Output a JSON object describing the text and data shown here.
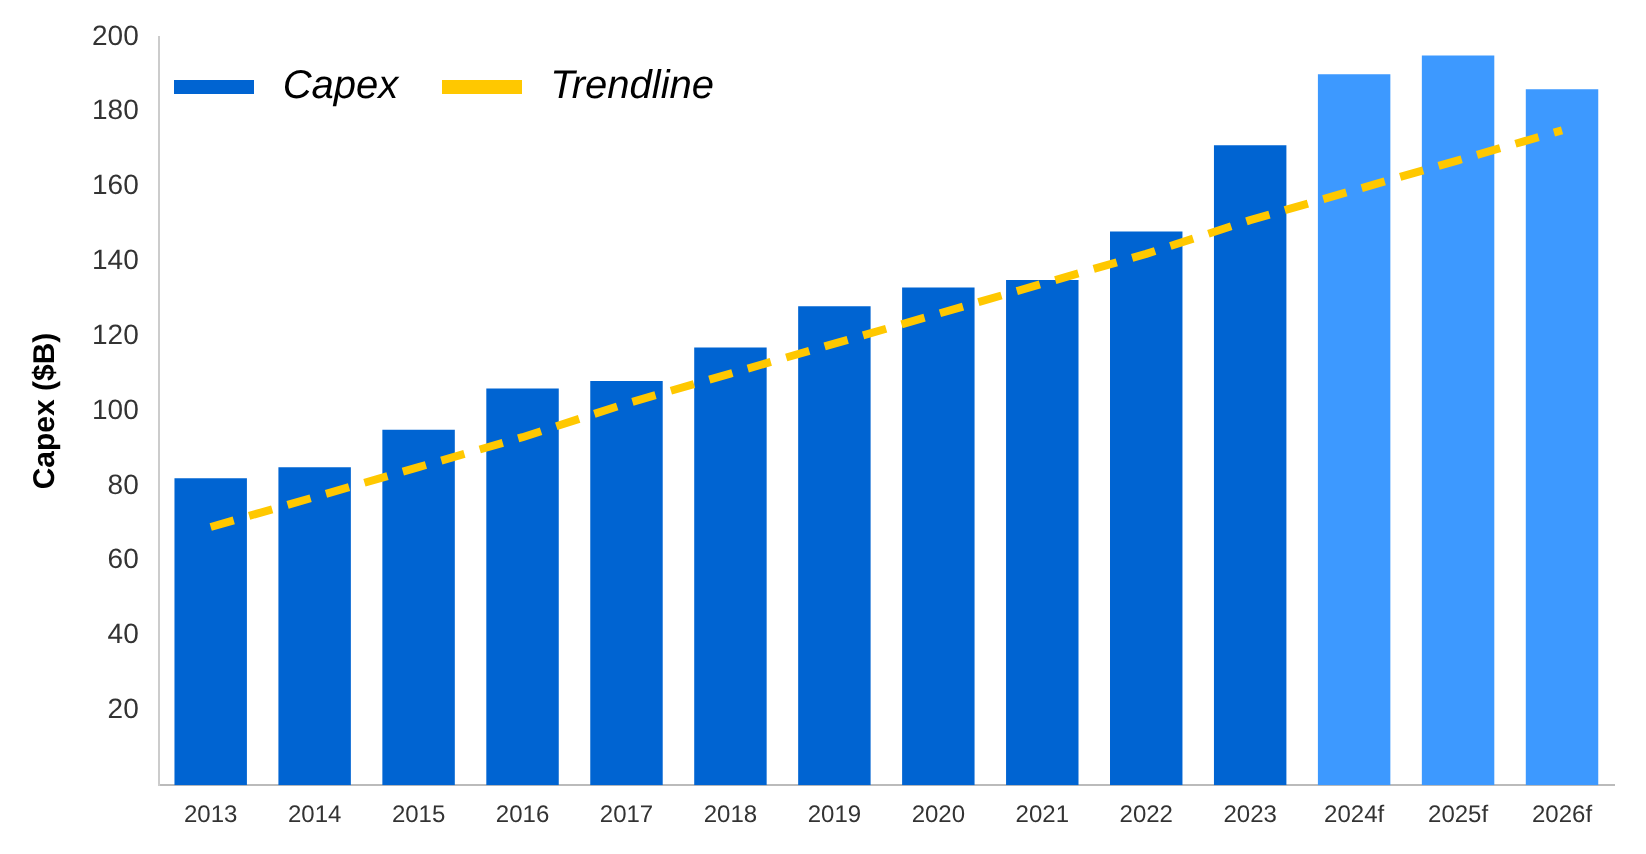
{
  "chart_data": {
    "type": "bar",
    "ylabel": "Capex ($B)",
    "categories": [
      "2013",
      "2014",
      "2015",
      "2016",
      "2017",
      "2018",
      "2019",
      "2020",
      "2021",
      "2022",
      "2023",
      "2024f",
      "2025f",
      "2026f"
    ],
    "series": [
      {
        "name": "Capex",
        "color": "#0064d2",
        "colors": [
          "#0064d2",
          "#0064d2",
          "#0064d2",
          "#0064d2",
          "#0064d2",
          "#0064d2",
          "#0064d2",
          "#0064d2",
          "#0064d2",
          "#0064d2",
          "#0064d2",
          "#3d99ff",
          "#3d99ff",
          "#3d99ff"
        ],
        "values": [
          82,
          85,
          95,
          106,
          108,
          117,
          128,
          133,
          135,
          148,
          171,
          190,
          195,
          186
        ]
      },
      {
        "name": "Trendline",
        "type": "line",
        "color": "#ffc800",
        "line_style": "dashed",
        "marker": "none",
        "values": [
          69,
          77,
          85,
          93,
          102,
          110,
          118,
          126,
          134,
          142,
          151,
          159,
          167,
          175
        ]
      }
    ],
    "ylim": [
      0,
      200
    ],
    "yticks": [
      20,
      40,
      60,
      80,
      100,
      120,
      140,
      160,
      180,
      200
    ],
    "grid": false,
    "legend": "top left"
  }
}
